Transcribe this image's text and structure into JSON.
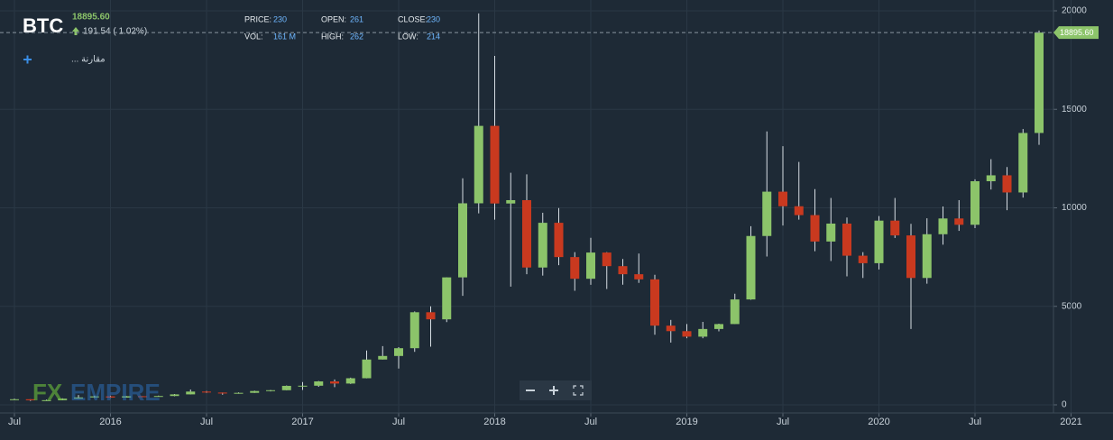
{
  "header": {
    "symbol": "BTC",
    "price": "18895.60",
    "change": "191.54 ( 1.02%)",
    "stats": [
      {
        "label": "PRICE:",
        "value": "230"
      },
      {
        "label": "OPEN:",
        "value": "261"
      },
      {
        "label": "CLOSE:",
        "value": "230"
      },
      {
        "label": "VOL:",
        "value": "161 M"
      },
      {
        "label": "HIGH:",
        "value": "262"
      },
      {
        "label": "LOW:",
        "value": "214"
      }
    ],
    "compare": "مقارنة ...",
    "watermark": {
      "prefix": "FX",
      "suffix": "EMPIRE"
    }
  },
  "chart_data": {
    "type": "candlestick",
    "grid": true,
    "up_color": "#8cc46a",
    "down_color": "#c9391f",
    "x": [
      "2015-07",
      "2015-08",
      "2015-09",
      "2015-10",
      "2015-11",
      "2015-12",
      "2016-01",
      "2016-02",
      "2016-03",
      "2016-04",
      "2016-05",
      "2016-06",
      "2016-07",
      "2016-08",
      "2016-09",
      "2016-10",
      "2016-11",
      "2016-12",
      "2017-01",
      "2017-02",
      "2017-03",
      "2017-04",
      "2017-05",
      "2017-06",
      "2017-07",
      "2017-08",
      "2017-09",
      "2017-10",
      "2017-11",
      "2017-12",
      "2018-01",
      "2018-02",
      "2018-03",
      "2018-04",
      "2018-05",
      "2018-06",
      "2018-07",
      "2018-08",
      "2018-09",
      "2018-10",
      "2018-11",
      "2018-12",
      "2019-01",
      "2019-02",
      "2019-03",
      "2019-04",
      "2019-05",
      "2019-06",
      "2019-07",
      "2019-08",
      "2019-09",
      "2019-10",
      "2019-11",
      "2019-12",
      "2020-01",
      "2020-02",
      "2020-03",
      "2020-04",
      "2020-05",
      "2020-06",
      "2020-07",
      "2020-08",
      "2020-09",
      "2020-10",
      "2020-11"
    ],
    "open": [
      263,
      284,
      230,
      236,
      314,
      377,
      430,
      369,
      437,
      416,
      448,
      531,
      673,
      624,
      574,
      609,
      701,
      742,
      963,
      970,
      1190,
      1080,
      1350,
      2300,
      2480,
      2875,
      4700,
      4340,
      6470,
      10230,
      14160,
      10220,
      10390,
      6970,
      9240,
      7500,
      6400,
      7730,
      7040,
      6630,
      6370,
      4020,
      3740,
      3460,
      3850,
      4100,
      5350,
      8570,
      10820,
      10080,
      9630,
      8290,
      9200,
      7570,
      7190,
      9350,
      8600,
      6440,
      8660,
      9460,
      9140,
      11350,
      11650,
      10780,
      13800
    ],
    "high": [
      314,
      284,
      262,
      331,
      495,
      467,
      462,
      447,
      439,
      468,
      548,
      779,
      704,
      626,
      628,
      719,
      753,
      981,
      1153,
      1210,
      1290,
      1380,
      2760,
      2980,
      2930,
      4740,
      5000,
      6470,
      11500,
      19870,
      17710,
      11780,
      11700,
      9750,
      9990,
      7750,
      8480,
      7750,
      7400,
      7680,
      6600,
      4310,
      4100,
      4210,
      4120,
      5640,
      9070,
      13880,
      13130,
      12330,
      10950,
      10500,
      9510,
      7750,
      9580,
      10500,
      9190,
      9470,
      10070,
      10390,
      11450,
      12470,
      12070,
      14000,
      19000
    ],
    "low": [
      257,
      198,
      224,
      236,
      310,
      350,
      355,
      365,
      394,
      414,
      437,
      526,
      605,
      514,
      567,
      606,
      681,
      740,
      755,
      914,
      900,
      1060,
      1345,
      2300,
      1840,
      2690,
      2950,
      4200,
      5530,
      9720,
      9400,
      6000,
      6630,
      6560,
      7090,
      5790,
      6090,
      5880,
      6100,
      6190,
      3560,
      3160,
      3380,
      3380,
      3730,
      4100,
      5330,
      7530,
      9100,
      9400,
      7800,
      7300,
      6520,
      6440,
      6870,
      8470,
      3850,
      6150,
      8130,
      8830,
      8970,
      10930,
      9880,
      10520,
      13200
    ],
    "close": [
      284,
      230,
      236,
      314,
      377,
      430,
      369,
      437,
      416,
      448,
      531,
      673,
      624,
      574,
      609,
      701,
      742,
      963,
      970,
      1190,
      1080,
      1350,
      2300,
      2480,
      2875,
      4700,
      4340,
      6470,
      10230,
      14160,
      10220,
      10390,
      6970,
      9240,
      7500,
      6400,
      7730,
      7040,
      6630,
      6370,
      4020,
      3740,
      3460,
      3850,
      4100,
      5350,
      8570,
      10820,
      10080,
      9630,
      8290,
      9200,
      7570,
      7190,
      9350,
      8600,
      6440,
      8660,
      9460,
      9140,
      11350,
      11650,
      10780,
      13800,
      18895.6
    ],
    "last_price": {
      "value": 18895.6,
      "label": "18895.60"
    },
    "ylim": [
      0,
      20000
    ],
    "yticks": [
      0,
      5000,
      10000,
      15000,
      20000
    ],
    "xticks": [
      {
        "value": "2015-07",
        "label": "Jul"
      },
      {
        "value": "2016-01",
        "label": "2016"
      },
      {
        "value": "2016-07",
        "label": "Jul"
      },
      {
        "value": "2017-01",
        "label": "2017"
      },
      {
        "value": "2017-07",
        "label": "Jul"
      },
      {
        "value": "2018-01",
        "label": "2018"
      },
      {
        "value": "2018-07",
        "label": "Jul"
      },
      {
        "value": "2019-01",
        "label": "2019"
      },
      {
        "value": "2019-07",
        "label": "Jul"
      },
      {
        "value": "2020-01",
        "label": "2020"
      },
      {
        "value": "2020-07",
        "label": "Jul"
      },
      {
        "value": "2021-01",
        "label": "2021"
      }
    ]
  }
}
